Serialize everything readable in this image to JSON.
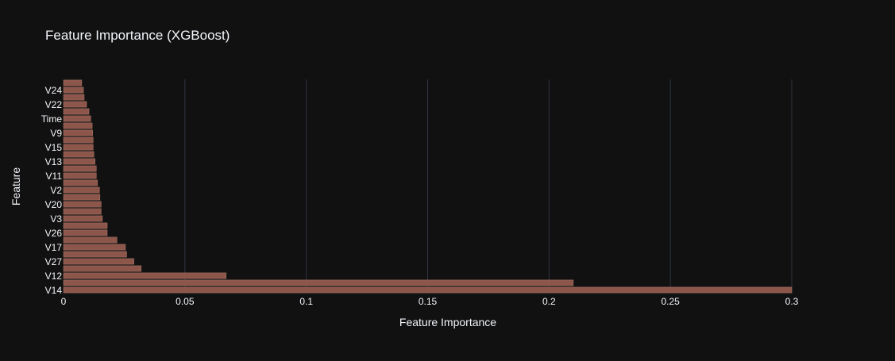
{
  "chart_data": {
    "type": "bar",
    "orientation": "horizontal",
    "title": "Feature Importance (XGBoost)",
    "xlabel": "Feature Importance",
    "ylabel": "Feature",
    "xlim": [
      0,
      0.3
    ],
    "x_ticks": [
      0,
      0.05,
      0.1,
      0.15,
      0.2,
      0.25,
      0.3
    ],
    "x_tick_labels": [
      "0",
      "0.05",
      "0.1",
      "0.15",
      "0.2",
      "0.25",
      "0.3"
    ],
    "grid": "vertical",
    "categories": [
      "V14",
      "",
      "V12",
      "",
      "V27",
      "",
      "V17",
      "",
      "V26",
      "",
      "V3",
      "",
      "V20",
      "",
      "V2",
      "",
      "V11",
      "",
      "V13",
      "",
      "V15",
      "",
      "V9",
      "",
      "Time",
      "",
      "V22",
      "",
      "V24",
      ""
    ],
    "values": [
      0.3,
      0.21,
      0.067,
      0.032,
      0.029,
      0.026,
      0.0255,
      0.022,
      0.018,
      0.018,
      0.016,
      0.0155,
      0.0155,
      0.015,
      0.0148,
      0.014,
      0.0135,
      0.0135,
      0.013,
      0.0125,
      0.0122,
      0.0122,
      0.012,
      0.0118,
      0.0112,
      0.0105,
      0.0095,
      0.0085,
      0.0082,
      0.0075
    ]
  },
  "colors": {
    "background": "#111111",
    "bar_fill": "#8c564b",
    "bar_stroke": "#b07a6c",
    "grid": "#2e3440",
    "text": "#f2f5fa"
  }
}
